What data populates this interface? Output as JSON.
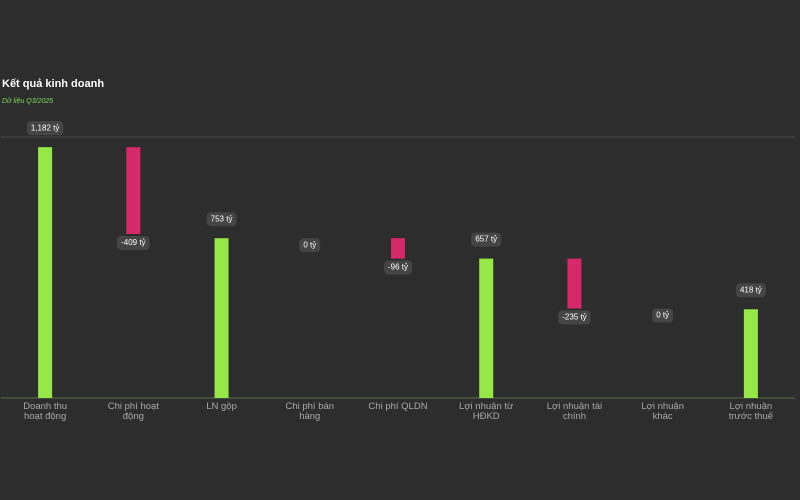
{
  "chart_data": {
    "type": "waterfall",
    "title": "Kết quả kinh doanh",
    "subtitle": "Dữ liệu Q3/2025",
    "categories": [
      "Doanh thu hoạt động",
      "Chi phí hoạt động",
      "LN gộp",
      "Chi phí bán hàng",
      "Chi phí QLDN",
      "Lợi nhuận từ HĐKD",
      "Lợi nhuận tài chính",
      "Lợi nhuận khác",
      "Lợi nhuận trước thuế"
    ],
    "measure": [
      "total",
      "relative",
      "total",
      "relative",
      "relative",
      "total",
      "relative",
      "relative",
      "total"
    ],
    "values": [
      1182,
      -409,
      753,
      0,
      -96,
      657,
      -235,
      0,
      418
    ],
    "value_labels": [
      "1,182 tỷ",
      "-409 tỷ",
      "753 tỷ",
      "0 tỷ",
      "-96 tỷ",
      "657 tỷ",
      "-235 tỷ",
      "0 tỷ",
      "418 tỷ"
    ],
    "colors": {
      "total": "#95e845",
      "increase": "#95e845",
      "decrease": "#d6286a"
    },
    "ylim": [
      0,
      1230
    ]
  }
}
